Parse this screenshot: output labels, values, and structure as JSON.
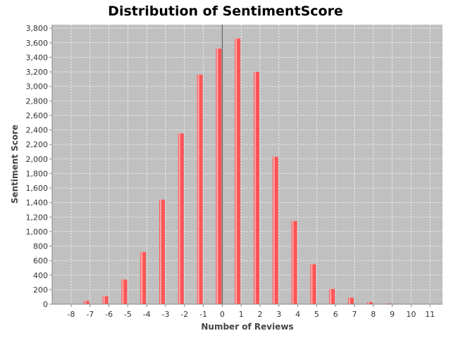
{
  "chart_data": {
    "type": "bar",
    "title": "Distribution of SentimentScore",
    "xlabel": "Number of Reviews",
    "ylabel": "Sentiment Score",
    "categories": [
      "-8",
      "-7",
      "-6",
      "-5",
      "-4",
      "-3",
      "-2",
      "-1",
      "0",
      "1",
      "2",
      "3",
      "4",
      "5",
      "6",
      "7",
      "8",
      "9",
      "10",
      "11"
    ],
    "values": [
      3,
      45,
      110,
      340,
      720,
      1440,
      2350,
      3160,
      3520,
      3660,
      3200,
      2030,
      1145,
      550,
      210,
      90,
      30,
      10,
      3,
      1
    ],
    "ylim": [
      0,
      3850
    ],
    "y_ticks": [
      "0",
      "200",
      "400",
      "600",
      "800",
      "1,000",
      "1,200",
      "1,400",
      "1,600",
      "1,800",
      "2,000",
      "2,200",
      "2,400",
      "2,600",
      "2,800",
      "3,000",
      "3,200",
      "3,400",
      "3,600",
      "3,800"
    ],
    "grid": true,
    "legend": "none",
    "colors": {
      "bar": "#ff5555",
      "bar_highlight": "#ffaaaa",
      "plot_background": "#c0c0c0",
      "grid": "#ffffff",
      "zero_line": "#555555"
    }
  }
}
